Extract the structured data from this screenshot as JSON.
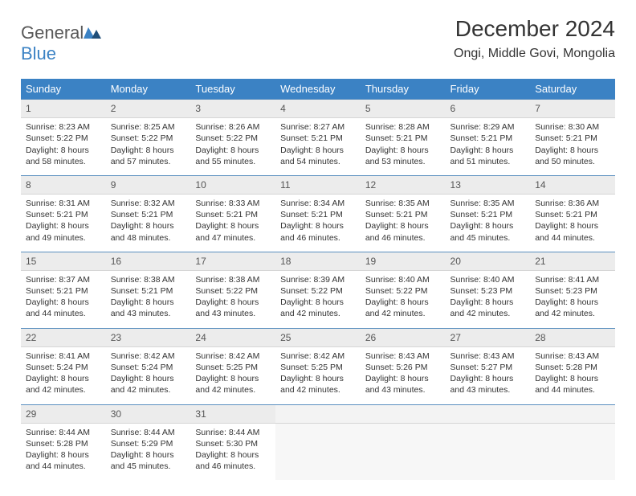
{
  "brand": {
    "part1": "General",
    "part2": "Blue"
  },
  "title": "December 2024",
  "location": "Ongi, Middle Govi, Mongolia",
  "colors": {
    "header_bg": "#3b82c4",
    "daynum_bg": "#ececec",
    "daynum_border_top": "#5a8fbf",
    "text": "#333333",
    "logo_gray": "#595959",
    "logo_blue": "#3b82c4"
  },
  "weekdays": [
    "Sunday",
    "Monday",
    "Tuesday",
    "Wednesday",
    "Thursday",
    "Friday",
    "Saturday"
  ],
  "weeks": [
    [
      {
        "d": "1",
        "sr": "8:23 AM",
        "ss": "5:22 PM",
        "dl": "8 hours and 58 minutes."
      },
      {
        "d": "2",
        "sr": "8:25 AM",
        "ss": "5:22 PM",
        "dl": "8 hours and 57 minutes."
      },
      {
        "d": "3",
        "sr": "8:26 AM",
        "ss": "5:22 PM",
        "dl": "8 hours and 55 minutes."
      },
      {
        "d": "4",
        "sr": "8:27 AM",
        "ss": "5:21 PM",
        "dl": "8 hours and 54 minutes."
      },
      {
        "d": "5",
        "sr": "8:28 AM",
        "ss": "5:21 PM",
        "dl": "8 hours and 53 minutes."
      },
      {
        "d": "6",
        "sr": "8:29 AM",
        "ss": "5:21 PM",
        "dl": "8 hours and 51 minutes."
      },
      {
        "d": "7",
        "sr": "8:30 AM",
        "ss": "5:21 PM",
        "dl": "8 hours and 50 minutes."
      }
    ],
    [
      {
        "d": "8",
        "sr": "8:31 AM",
        "ss": "5:21 PM",
        "dl": "8 hours and 49 minutes."
      },
      {
        "d": "9",
        "sr": "8:32 AM",
        "ss": "5:21 PM",
        "dl": "8 hours and 48 minutes."
      },
      {
        "d": "10",
        "sr": "8:33 AM",
        "ss": "5:21 PM",
        "dl": "8 hours and 47 minutes."
      },
      {
        "d": "11",
        "sr": "8:34 AM",
        "ss": "5:21 PM",
        "dl": "8 hours and 46 minutes."
      },
      {
        "d": "12",
        "sr": "8:35 AM",
        "ss": "5:21 PM",
        "dl": "8 hours and 46 minutes."
      },
      {
        "d": "13",
        "sr": "8:35 AM",
        "ss": "5:21 PM",
        "dl": "8 hours and 45 minutes."
      },
      {
        "d": "14",
        "sr": "8:36 AM",
        "ss": "5:21 PM",
        "dl": "8 hours and 44 minutes."
      }
    ],
    [
      {
        "d": "15",
        "sr": "8:37 AM",
        "ss": "5:21 PM",
        "dl": "8 hours and 44 minutes."
      },
      {
        "d": "16",
        "sr": "8:38 AM",
        "ss": "5:21 PM",
        "dl": "8 hours and 43 minutes."
      },
      {
        "d": "17",
        "sr": "8:38 AM",
        "ss": "5:22 PM",
        "dl": "8 hours and 43 minutes."
      },
      {
        "d": "18",
        "sr": "8:39 AM",
        "ss": "5:22 PM",
        "dl": "8 hours and 42 minutes."
      },
      {
        "d": "19",
        "sr": "8:40 AM",
        "ss": "5:22 PM",
        "dl": "8 hours and 42 minutes."
      },
      {
        "d": "20",
        "sr": "8:40 AM",
        "ss": "5:23 PM",
        "dl": "8 hours and 42 minutes."
      },
      {
        "d": "21",
        "sr": "8:41 AM",
        "ss": "5:23 PM",
        "dl": "8 hours and 42 minutes."
      }
    ],
    [
      {
        "d": "22",
        "sr": "8:41 AM",
        "ss": "5:24 PM",
        "dl": "8 hours and 42 minutes."
      },
      {
        "d": "23",
        "sr": "8:42 AM",
        "ss": "5:24 PM",
        "dl": "8 hours and 42 minutes."
      },
      {
        "d": "24",
        "sr": "8:42 AM",
        "ss": "5:25 PM",
        "dl": "8 hours and 42 minutes."
      },
      {
        "d": "25",
        "sr": "8:42 AM",
        "ss": "5:25 PM",
        "dl": "8 hours and 42 minutes."
      },
      {
        "d": "26",
        "sr": "8:43 AM",
        "ss": "5:26 PM",
        "dl": "8 hours and 43 minutes."
      },
      {
        "d": "27",
        "sr": "8:43 AM",
        "ss": "5:27 PM",
        "dl": "8 hours and 43 minutes."
      },
      {
        "d": "28",
        "sr": "8:43 AM",
        "ss": "5:28 PM",
        "dl": "8 hours and 44 minutes."
      }
    ],
    [
      {
        "d": "29",
        "sr": "8:44 AM",
        "ss": "5:28 PM",
        "dl": "8 hours and 44 minutes."
      },
      {
        "d": "30",
        "sr": "8:44 AM",
        "ss": "5:29 PM",
        "dl": "8 hours and 45 minutes."
      },
      {
        "d": "31",
        "sr": "8:44 AM",
        "ss": "5:30 PM",
        "dl": "8 hours and 46 minutes."
      },
      null,
      null,
      null,
      null
    ]
  ],
  "labels": {
    "sunrise": "Sunrise:",
    "sunset": "Sunset:",
    "daylight": "Daylight:"
  }
}
